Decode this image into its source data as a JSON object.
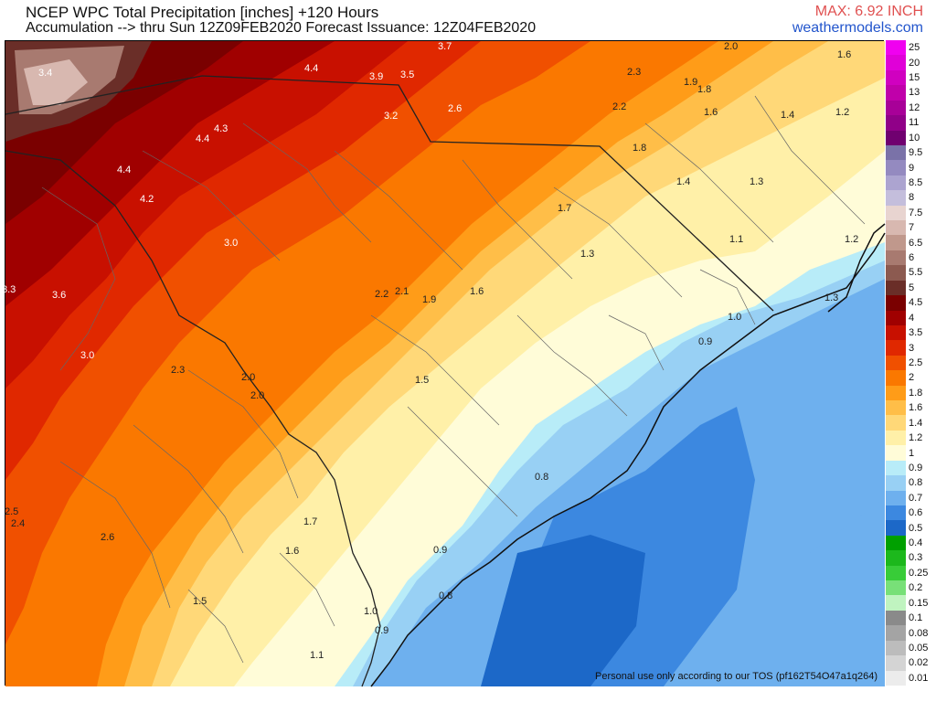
{
  "header": {
    "title_line1": "NCEP WPC Total Precipitation [inches] +120 Hours",
    "title_line2": "Accumulation --> thru Sun 12Z09FEB2020   Forecast Issuance: 12Z04FEB2020",
    "max_label": "MAX: 6.92 INCH",
    "site": "weathermodels.com"
  },
  "footer": {
    "tos": "Personal use only according to our TOS (pf162T54O47a1q264)"
  },
  "legend": [
    {
      "label": "25",
      "color": "#f000f0"
    },
    {
      "label": "20",
      "color": "#e000d8"
    },
    {
      "label": "15",
      "color": "#d000c0"
    },
    {
      "label": "13",
      "color": "#c000aa"
    },
    {
      "label": "12",
      "color": "#a80098"
    },
    {
      "label": "11",
      "color": "#900088"
    },
    {
      "label": "10",
      "color": "#700070"
    },
    {
      "label": "9.5",
      "color": "#7a72a8"
    },
    {
      "label": "9",
      "color": "#948ac0"
    },
    {
      "label": "8.5",
      "color": "#aca4d0"
    },
    {
      "label": "8",
      "color": "#c4bedc"
    },
    {
      "label": "7.5",
      "color": "#e8d4d0"
    },
    {
      "label": "7",
      "color": "#d8b8b0"
    },
    {
      "label": "6.5",
      "color": "#c0988c"
    },
    {
      "label": "6",
      "color": "#a87a70"
    },
    {
      "label": "5.5",
      "color": "#8c5a50"
    },
    {
      "label": "5",
      "color": "#6a2e28"
    },
    {
      "label": "4.5",
      "color": "#7a0000"
    },
    {
      "label": "4",
      "color": "#a00000"
    },
    {
      "label": "3.5",
      "color": "#c81000"
    },
    {
      "label": "3",
      "color": "#e02800"
    },
    {
      "label": "2.5",
      "color": "#f05000"
    },
    {
      "label": "2",
      "color": "#fa7800"
    },
    {
      "label": "1.8",
      "color": "#ff9c18"
    },
    {
      "label": "1.6",
      "color": "#ffbe48"
    },
    {
      "label": "1.4",
      "color": "#ffd878"
    },
    {
      "label": "1.2",
      "color": "#fff0a8"
    },
    {
      "label": "1",
      "color": "#fffcd8"
    },
    {
      "label": "0.9",
      "color": "#b8ecf8"
    },
    {
      "label": "0.8",
      "color": "#98d0f4"
    },
    {
      "label": "0.7",
      "color": "#6eb0ee"
    },
    {
      "label": "0.6",
      "color": "#3c88e0"
    },
    {
      "label": "0.5",
      "color": "#1c68c8"
    },
    {
      "label": "0.4",
      "color": "#00a000"
    },
    {
      "label": "0.3",
      "color": "#1cb81c"
    },
    {
      "label": "0.25",
      "color": "#38cc38"
    },
    {
      "label": "0.2",
      "color": "#78e078"
    },
    {
      "label": "0.15",
      "color": "#c0f4c0"
    },
    {
      "label": "0.1",
      "color": "#8a8a8a"
    },
    {
      "label": "0.08",
      "color": "#a4a4a4"
    },
    {
      "label": "0.05",
      "color": "#bcbcbc"
    },
    {
      "label": "0.02",
      "color": "#d4d4d4"
    },
    {
      "label": "0.01",
      "color": "#ececec"
    }
  ],
  "map_labels": [
    "3.4",
    "4.4",
    "3.9",
    "3.5",
    "3.7",
    "2.0",
    "1.6",
    "2.3",
    "1.9",
    "1.8",
    "2.6",
    "3.2",
    "2.2",
    "1.6",
    "1.4",
    "1.2",
    "4.3",
    "4.4",
    "4.4",
    "4.2",
    "1.8",
    "1.4",
    "1.3",
    "1.7",
    "3.0",
    "1.3",
    "1.1",
    "1.2",
    "3.3",
    "3.6",
    "2.2",
    "2.1",
    "1.9",
    "1.6",
    "1.3",
    "1.0",
    "0.9",
    "3.0",
    "2.3",
    "2.0",
    "2.0",
    "1.5",
    "0.8",
    "2.5",
    "2.4",
    "2.6",
    "1.7",
    "1.6",
    "0.9",
    "0.8",
    "1.5",
    "1.0",
    "0.9",
    "1.1"
  ]
}
